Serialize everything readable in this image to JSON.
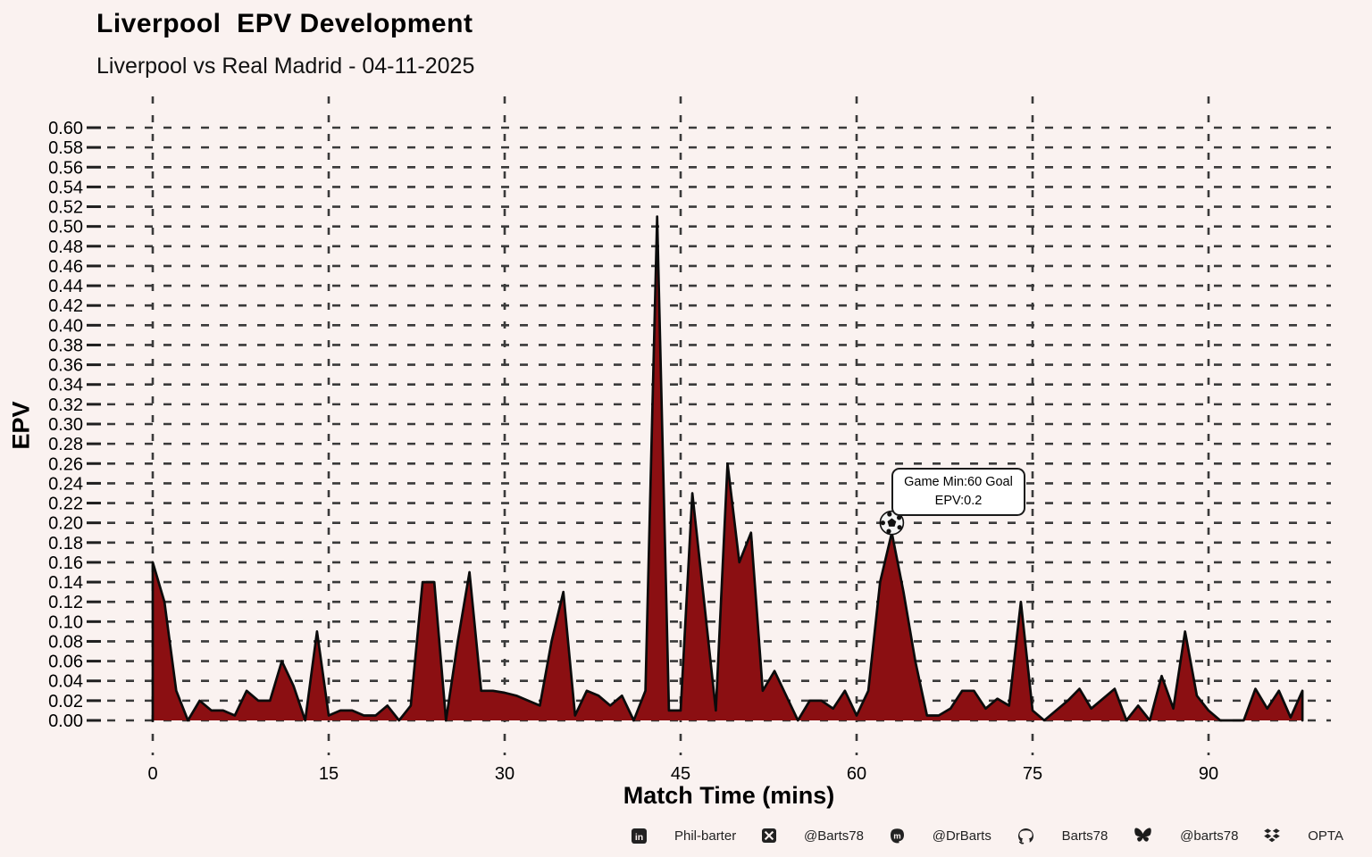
{
  "header": {
    "title": "Liverpool  EPV Development",
    "subtitle": "Liverpool vs Real Madrid - 04-11-2025"
  },
  "chart_data": {
    "type": "area",
    "title": "Liverpool  EPV Development",
    "subtitle": "Liverpool vs Real Madrid - 04-11-2025",
    "xlabel": "Match Time (mins)",
    "ylabel": "EPV",
    "xlim": [
      0,
      99
    ],
    "ylim": [
      0,
      0.6
    ],
    "ytick_step": 0.02,
    "xticks": [
      0,
      15,
      30,
      45,
      60,
      75,
      90
    ],
    "grid": "dashed both axes",
    "fill_color": "#8B0F12",
    "line_color": "#0b0b0b",
    "background_color": "#FAF2F0",
    "x": [
      0,
      1,
      2,
      3,
      4,
      5,
      6,
      7,
      8,
      9,
      10,
      11,
      12,
      13,
      14,
      15,
      16,
      17,
      18,
      19,
      20,
      21,
      22,
      23,
      24,
      25,
      26,
      27,
      28,
      29,
      30,
      31,
      32,
      33,
      34,
      35,
      36,
      37,
      38,
      39,
      40,
      41,
      42,
      43,
      44,
      45,
      46,
      47,
      48,
      49,
      50,
      51,
      52,
      53,
      54,
      55,
      56,
      57,
      58,
      59,
      60,
      61,
      62,
      63,
      64,
      65,
      66,
      67,
      68,
      69,
      70,
      71,
      72,
      73,
      74,
      75,
      76,
      77,
      78,
      79,
      80,
      81,
      82,
      83,
      84,
      85,
      86,
      87,
      88,
      89,
      90,
      91,
      92,
      93,
      94,
      95,
      96,
      97,
      98
    ],
    "y": [
      0.16,
      0.12,
      0.03,
      0,
      0.02,
      0.01,
      0.01,
      0.005,
      0.03,
      0.02,
      0.02,
      0.06,
      0.035,
      0,
      0.09,
      0.005,
      0.01,
      0.01,
      0.005,
      0.005,
      0.015,
      0,
      0.015,
      0.14,
      0.14,
      0,
      0.08,
      0.15,
      0.03,
      0.03,
      0.028,
      0.025,
      0.02,
      0.015,
      0.08,
      0.13,
      0.005,
      0.03,
      0.025,
      0.015,
      0.025,
      0,
      0.03,
      0.51,
      0.01,
      0.01,
      0.23,
      0.12,
      0.01,
      0.26,
      0.16,
      0.19,
      0.03,
      0.05,
      0.025,
      0,
      0.02,
      0.02,
      0.012,
      0.03,
      0.005,
      0.03,
      0.14,
      0.19,
      0.13,
      0.06,
      0.005,
      0.005,
      0.012,
      0.03,
      0.03,
      0.012,
      0.022,
      0.015,
      0.12,
      0.01,
      0,
      0.01,
      0.02,
      0.032,
      0.012,
      0.022,
      0.032,
      0,
      0.015,
      0,
      0.045,
      0.012,
      0.09,
      0.025,
      0.01,
      0,
      0,
      0,
      0.032,
      0.012,
      0.03,
      0.003,
      0.03
    ],
    "goal_marker": {
      "minute": 63,
      "epv": 0.2,
      "label": "Game Min:60 Goal EPV:0.2"
    }
  },
  "annotation": {
    "line1": "Game Min:60 Goal",
    "line2": "EPV:0.2"
  },
  "footer": {
    "items": [
      {
        "icon": "linkedin-icon",
        "label": "Phil-barter"
      },
      {
        "icon": "x-icon",
        "label": "@Barts78"
      },
      {
        "icon": "mastodon-icon",
        "label": "@DrBarts"
      },
      {
        "icon": "github-icon",
        "label": "Barts78"
      },
      {
        "icon": "bluesky-icon",
        "label": "@barts78"
      },
      {
        "icon": "dropbox-icon",
        "label": "OPTA"
      }
    ]
  }
}
